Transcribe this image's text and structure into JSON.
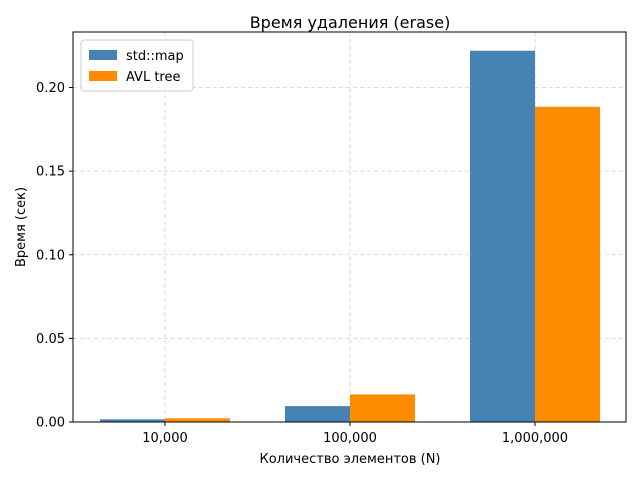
{
  "chart_data": {
    "type": "bar",
    "title": "Время удаления (erase)",
    "xlabel": "Количество элементов (N)",
    "ylabel": "Время (сек)",
    "categories": [
      "10,000",
      "100,000",
      "1,000,000"
    ],
    "series": [
      {
        "name": "std::map",
        "color": "#4682b4",
        "values": [
          0.0016,
          0.0095,
          0.222
        ]
      },
      {
        "name": "AVL tree",
        "color": "#ff8c00",
        "values": [
          0.0022,
          0.0165,
          0.1885
        ]
      }
    ],
    "ylim": [
      0,
      0.2332
    ],
    "yticks": [
      "0.00",
      "0.05",
      "0.10",
      "0.15",
      "0.20"
    ],
    "ytick_values": [
      0,
      0.05,
      0.1,
      0.15,
      0.2
    ],
    "grid": true,
    "grid_style": "dashed",
    "legend_position": "top-left"
  }
}
